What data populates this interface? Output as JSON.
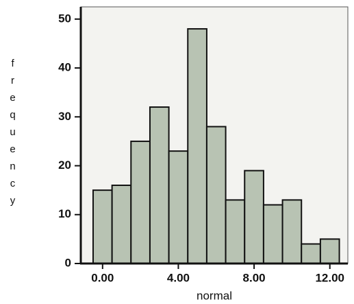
{
  "chart_data": {
    "type": "histogram",
    "xlabel": "normal",
    "ylabel": "frequency",
    "bins": [
      -0.5,
      0.5,
      1.5,
      2.5,
      3.5,
      4.5,
      5.5,
      6.5,
      7.5,
      8.5,
      9.5,
      10.5,
      11.5,
      12.5
    ],
    "values": [
      15,
      16,
      25,
      32,
      23,
      48,
      28,
      13,
      19,
      12,
      13,
      4,
      5
    ],
    "color": "#b8c3b3",
    "xlim": [
      -1.15,
      12.95
    ],
    "ylim": [
      0,
      52.5
    ],
    "xticks": [
      {
        "value": 0,
        "label": "0.00"
      },
      {
        "value": 4,
        "label": "4.00"
      },
      {
        "value": 8,
        "label": "8.00"
      },
      {
        "value": 12,
        "label": "12.00"
      }
    ],
    "yticks": [
      0,
      10,
      20,
      30,
      40,
      50
    ]
  }
}
